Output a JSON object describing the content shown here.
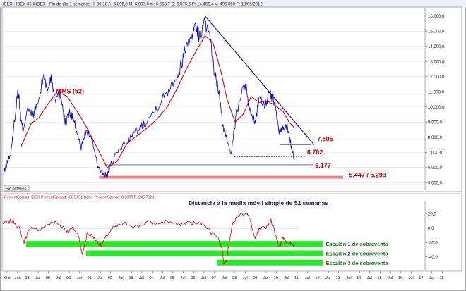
{
  "window": {
    "header": "IBEX : IBEX 35 INDEX - Fin de día 1 semanas  H: 09:18  A: 6.896,8  M: 6.907,0  m: 6.568,7  C: 6.576,5  P: 14.456,4  V: 496.659  F: 18/05/2012",
    "status_tag": "Sin órdenes",
    "lower_header": "PercentSpread_IBEX  PercentSpread: -30,5451  Band_PercentSpread: 0,0000  P: 245,7323",
    "lower_title": "Distancia a la media móvil simple de 52 semanas"
  },
  "chart_data": [
    {
      "type": "line",
      "panel": "upper",
      "yaxis_side": "right",
      "ylim": [
        4500,
        16500
      ],
      "yticks": [
        5000,
        6000,
        7000,
        8000,
        9000,
        10000,
        11000,
        12000,
        13000,
        14000,
        15000,
        16000
      ],
      "ytick_labels": [
        "5.000,0",
        "6.000,0",
        "7.000,0",
        "8.000,0",
        "9.000,0",
        "10.000,0",
        "11.000,0",
        "12.000,0",
        "13.000,0",
        "14.000,0",
        "15.000,0",
        "16.000,0"
      ],
      "xlim": [
        1997.75,
        2018.9
      ],
      "xtick_labels": [
        "Oct",
        "Jun",
        "98",
        "Jul",
        "99",
        "Jul",
        "00",
        "Jul",
        "01",
        "Jul",
        "02",
        "Jul",
        "03",
        "Jul",
        "04",
        "Jul",
        "05",
        "Jul",
        "06",
        "Jul",
        "07",
        "Jul",
        "08",
        "Jul",
        "09",
        "Jul",
        "10",
        "Jul",
        "11",
        "Jul",
        "12",
        "Jul",
        "13",
        "Jul",
        "14",
        "Jul",
        "15",
        "Jul",
        "16",
        "Jul",
        "17",
        "Jul",
        "18"
      ],
      "series": [
        {
          "role": "price",
          "color": "#0000cc",
          "x": [
            1997.8,
            1998.0,
            1998.2,
            1998.35,
            1998.55,
            1998.7,
            1998.8,
            1999.0,
            1999.3,
            1999.6,
            1999.85,
            2000.0,
            2000.2,
            2000.4,
            2000.7,
            2000.9,
            2001.1,
            2001.3,
            2001.5,
            2001.7,
            2001.95,
            2002.3,
            2002.55,
            2002.75,
            2003.0,
            2003.2,
            2003.5,
            2003.9,
            2004.3,
            2004.7,
            2005.0,
            2005.5,
            2005.9,
            2006.3,
            2006.6,
            2006.9,
            2007.2,
            2007.45,
            2007.6,
            2007.9,
            2008.15,
            2008.35,
            2008.6,
            2008.8,
            2009.0,
            2009.2,
            2009.5,
            2009.9,
            2010.1,
            2010.4,
            2010.6,
            2010.9,
            2011.15,
            2011.35,
            2011.6,
            2011.8,
            2012.0,
            2012.2,
            2012.38
          ],
          "y": [
            5500,
            6300,
            7000,
            8900,
            11200,
            9000,
            8500,
            9800,
            9500,
            10500,
            12300,
            11000,
            12000,
            10600,
            10800,
            8900,
            9600,
            9300,
            8300,
            7300,
            8500,
            7600,
            6000,
            5600,
            5500,
            6200,
            7000,
            7600,
            8200,
            8700,
            9100,
            10000,
            10800,
            11700,
            12300,
            13800,
            14700,
            15400,
            14600,
            15600,
            14400,
            12400,
            10900,
            8600,
            7900,
            7000,
            9800,
            11700,
            10000,
            8900,
            10600,
            10200,
            10800,
            10500,
            8400,
            8500,
            8800,
            7500,
            6577
          ]
        },
        {
          "name": "MMS (52)",
          "role": "moving-average",
          "color": "#dd0000",
          "x": [
            1998.7,
            1999.2,
            1999.6,
            2000.0,
            2000.5,
            2001.0,
            2001.5,
            2002.0,
            2002.5,
            2003.0,
            2003.5,
            2004.0,
            2004.5,
            2005.0,
            2005.5,
            2006.0,
            2006.5,
            2007.0,
            2007.5,
            2007.9,
            2008.3,
            2008.7,
            2009.0,
            2009.4,
            2009.8,
            2010.2,
            2010.6,
            2011.0,
            2011.4,
            2011.8,
            2012.1,
            2012.38
          ],
          "y": [
            7400,
            8900,
            9300,
            10100,
            11000,
            10700,
            9700,
            8600,
            7300,
            6000,
            6400,
            7600,
            8100,
            8600,
            9200,
            10000,
            11200,
            12600,
            13800,
            14700,
            14200,
            12300,
            10500,
            9000,
            9500,
            10700,
            10300,
            10400,
            10100,
            9700,
            9000,
            8600
          ]
        }
      ],
      "annotations": [
        {
          "text": "MMS (52)",
          "x": 2000.45,
          "y": 10900,
          "color": "#cc0000"
        },
        {
          "text": "7.505",
          "x": 2013.5,
          "y": 7740,
          "color": "#cc0000"
        },
        {
          "text": "6.702",
          "x": 2013.0,
          "y": 6880,
          "color": "#cc0000"
        },
        {
          "text": "6.177",
          "x": 2013.4,
          "y": 6000,
          "color": "#cc0000"
        },
        {
          "text": "5.447 / 5.293",
          "x": 2015.1,
          "y": 5350,
          "color": "#cc0000"
        }
      ],
      "levels": [
        {
          "value": 7505,
          "x_start": 2011.65,
          "x_end": 2013.2,
          "style": "solid",
          "color": "#4455cc"
        },
        {
          "value": 6702,
          "x_start": 2009.35,
          "x_end": 2012.9,
          "style": "dashed",
          "color": "#dd0000"
        },
        {
          "value": 6177,
          "x_start": 2002.9,
          "x_end": 2013.3,
          "style": "solid",
          "color": "#4455cc"
        },
        {
          "value_high": 5447,
          "value_low": 5293,
          "x_start": 2002.6,
          "x_end": 2014.8,
          "style": "band",
          "color": "#f28080"
        }
      ],
      "trendline": {
        "x": [
          2007.9,
          2013.35
        ],
        "y": [
          16000,
          7505
        ],
        "color": "#0000cc"
      }
    },
    {
      "type": "line",
      "panel": "lower",
      "yaxis_side": "right",
      "ylim": [
        -58,
        30
      ],
      "yticks": [
        20,
        0,
        -20,
        -40
      ],
      "ytick_labels": [
        "20,0",
        "0,0",
        "-20,0",
        "-40,0"
      ],
      "series": [
        {
          "role": "percent-spread",
          "color": "#dd0000",
          "x": [
            1997.8,
            1998.0,
            1998.3,
            1998.6,
            1998.85,
            1999.0,
            1999.3,
            1999.6,
            2000.0,
            2000.4,
            2000.8,
            2001.0,
            2001.3,
            2001.6,
            2001.75,
            2002.0,
            2002.3,
            2002.5,
            2002.7,
            2003.0,
            2003.3,
            2003.6,
            2004.0,
            2004.5,
            2005.0,
            2005.5,
            2006.0,
            2006.5,
            2007.0,
            2007.5,
            2007.9,
            2008.2,
            2008.5,
            2008.75,
            2008.85,
            2009.0,
            2009.1,
            2009.3,
            2009.6,
            2010.0,
            2010.2,
            2010.4,
            2010.6,
            2010.9,
            2011.2,
            2011.5,
            2011.65,
            2011.8,
            2012.0,
            2012.2,
            2012.38
          ],
          "y": [
            6,
            8,
            10,
            0,
            -20,
            -8,
            2,
            -4,
            5,
            8,
            2,
            -5,
            0,
            -12,
            -38,
            -8,
            -12,
            -18,
            -25,
            -10,
            0,
            4,
            6,
            2,
            8,
            6,
            10,
            4,
            8,
            6,
            5,
            -6,
            -10,
            -28,
            -50,
            -40,
            -20,
            8,
            18,
            22,
            6,
            -16,
            -2,
            0,
            10,
            -15,
            -28,
            -12,
            -20,
            -22,
            -30
          ]
        }
      ],
      "zero_line": 0,
      "bands": [
        {
          "label": "Escalón 1 de sobreventa",
          "y_center": -22,
          "x_start": 1998.95,
          "x_end": 2013.8
        },
        {
          "label": "Escalón 2 de sobreventa",
          "y_center": -35,
          "x_start": 2001.95,
          "x_end": 2013.8
        },
        {
          "label": "Escalón 3 de sobreventa",
          "y_center": -48,
          "x_start": 2008.5,
          "x_end": 2013.8
        }
      ]
    }
  ]
}
